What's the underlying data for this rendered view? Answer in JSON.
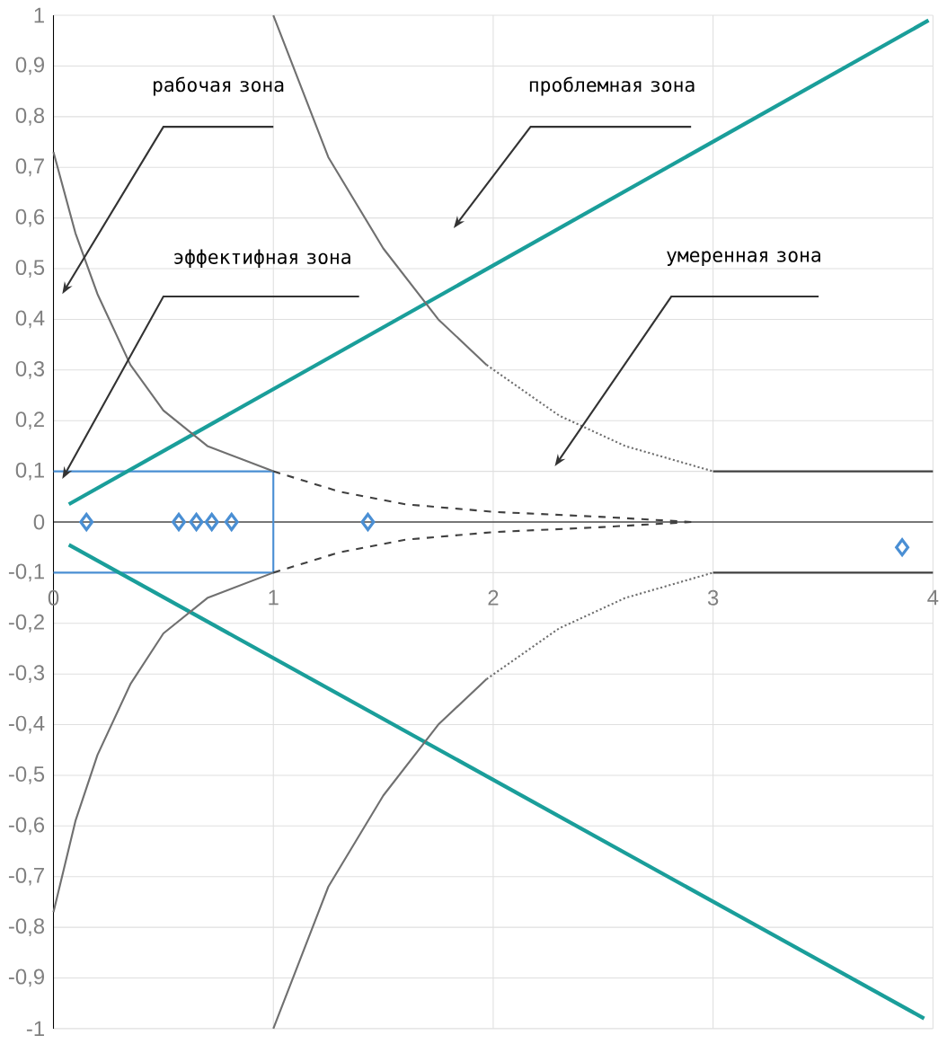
{
  "chart_data": {
    "type": "line",
    "xlim": [
      0,
      4
    ],
    "ylim": [
      -1,
      1
    ],
    "xticks": [
      0,
      1,
      2,
      3,
      4
    ],
    "yticks": [
      1,
      {
        "value": 0.9,
        "label": "0,9"
      },
      {
        "value": 0.8,
        "label": "0,8"
      },
      {
        "value": 0.7,
        "label": "0,7"
      },
      {
        "value": 0.6,
        "label": "0,6"
      },
      {
        "value": 0.5,
        "label": "0,5"
      },
      {
        "value": 0.4,
        "label": "0,4"
      },
      {
        "value": 0.3,
        "label": "0,3"
      },
      {
        "value": 0.2,
        "label": "0,2"
      },
      {
        "value": 0.1,
        "label": "0,1"
      },
      0,
      {
        "value": -0.1,
        "label": "-0,1"
      },
      {
        "value": -0.2,
        "label": "-0,2"
      },
      {
        "value": -0.3,
        "label": "-0,3"
      },
      {
        "value": -0.4,
        "label": "-0,4"
      },
      {
        "value": -0.5,
        "label": "-0,5"
      },
      {
        "value": -0.6,
        "label": "-0,6"
      },
      {
        "value": -0.7,
        "label": "-0,7"
      },
      {
        "value": -0.8,
        "label": "-0,8"
      },
      {
        "value": -0.9,
        "label": "-0,9"
      },
      -1
    ],
    "grid": true,
    "annotations": [
      "рабочая зона",
      "эффектифная зона",
      "проблемная зона",
      "умеренная зона"
    ],
    "series": [
      {
        "type": "scatter",
        "marker": "diamond",
        "color": "#4a8fd4",
        "x": [
          0.15,
          0.57,
          0.65,
          0.72,
          0.81,
          1.43,
          3.86
        ],
        "values": [
          0,
          0,
          0,
          0,
          0,
          0,
          -0.05
        ]
      },
      {
        "color": "#4a8fd4",
        "line_style": "solid",
        "x": [
          0,
          1,
          1,
          0
        ],
        "values": [
          0.1,
          0.1,
          -0.1,
          -0.1
        ]
      },
      {
        "color": "#1a9e9a",
        "line_style": "solid",
        "x": [
          0.07,
          3.98
        ],
        "values": [
          0.035,
          0.99
        ]
      },
      {
        "color": "#1a9e9a",
        "line_style": "solid",
        "x": [
          0.07,
          3.96
        ],
        "values": [
          -0.045,
          -0.98
        ]
      },
      {
        "color": "#707070",
        "line_style": "solid",
        "x": [
          1.0,
          1.25,
          1.5,
          1.75,
          1.97
        ],
        "values": [
          1.0,
          0.72,
          0.54,
          0.4,
          0.31
        ]
      },
      {
        "color": "#707070",
        "line_style": "dotted",
        "x": [
          1.97,
          2.3,
          2.6,
          3.0
        ],
        "values": [
          0.31,
          0.21,
          0.15,
          0.1
        ]
      },
      {
        "color": "#404040",
        "line_style": "solid",
        "x": [
          3.0,
          4.0
        ],
        "values": [
          0.1,
          0.1
        ]
      },
      {
        "color": "#707070",
        "line_style": "solid",
        "x": [
          1.0,
          1.25,
          1.5,
          1.75,
          1.97
        ],
        "values": [
          -1.0,
          -0.72,
          -0.54,
          -0.4,
          -0.31
        ]
      },
      {
        "color": "#707070",
        "line_style": "dotted",
        "x": [
          1.97,
          2.3,
          2.6,
          3.0
        ],
        "values": [
          -0.31,
          -0.21,
          -0.15,
          -0.1
        ]
      },
      {
        "color": "#404040",
        "line_style": "solid",
        "x": [
          3.0,
          4.0
        ],
        "values": [
          -0.1,
          -0.1
        ]
      },
      {
        "color": "#707070",
        "line_style": "solid",
        "x": [
          0,
          0.1,
          0.2,
          0.35,
          0.5,
          0.7,
          1.0
        ],
        "values": [
          0.73,
          0.57,
          0.45,
          0.31,
          0.22,
          0.15,
          0.1
        ]
      },
      {
        "color": "#404040",
        "line_style": "dashed",
        "x": [
          1.0,
          1.3,
          1.6,
          2.0,
          2.5,
          2.9
        ],
        "values": [
          0.1,
          0.06,
          0.035,
          0.02,
          0.01,
          0.0
        ]
      },
      {
        "color": "#707070",
        "line_style": "solid",
        "x": [
          0,
          0.1,
          0.2,
          0.35,
          0.5,
          0.7,
          1.0
        ],
        "values": [
          -0.77,
          -0.59,
          -0.46,
          -0.32,
          -0.22,
          -0.15,
          -0.1
        ]
      },
      {
        "color": "#404040",
        "line_style": "dashed",
        "x": [
          1.0,
          1.3,
          1.6,
          2.0,
          2.5,
          2.9
        ],
        "values": [
          -0.1,
          -0.06,
          -0.035,
          -0.02,
          -0.01,
          0.0
        ]
      }
    ]
  }
}
